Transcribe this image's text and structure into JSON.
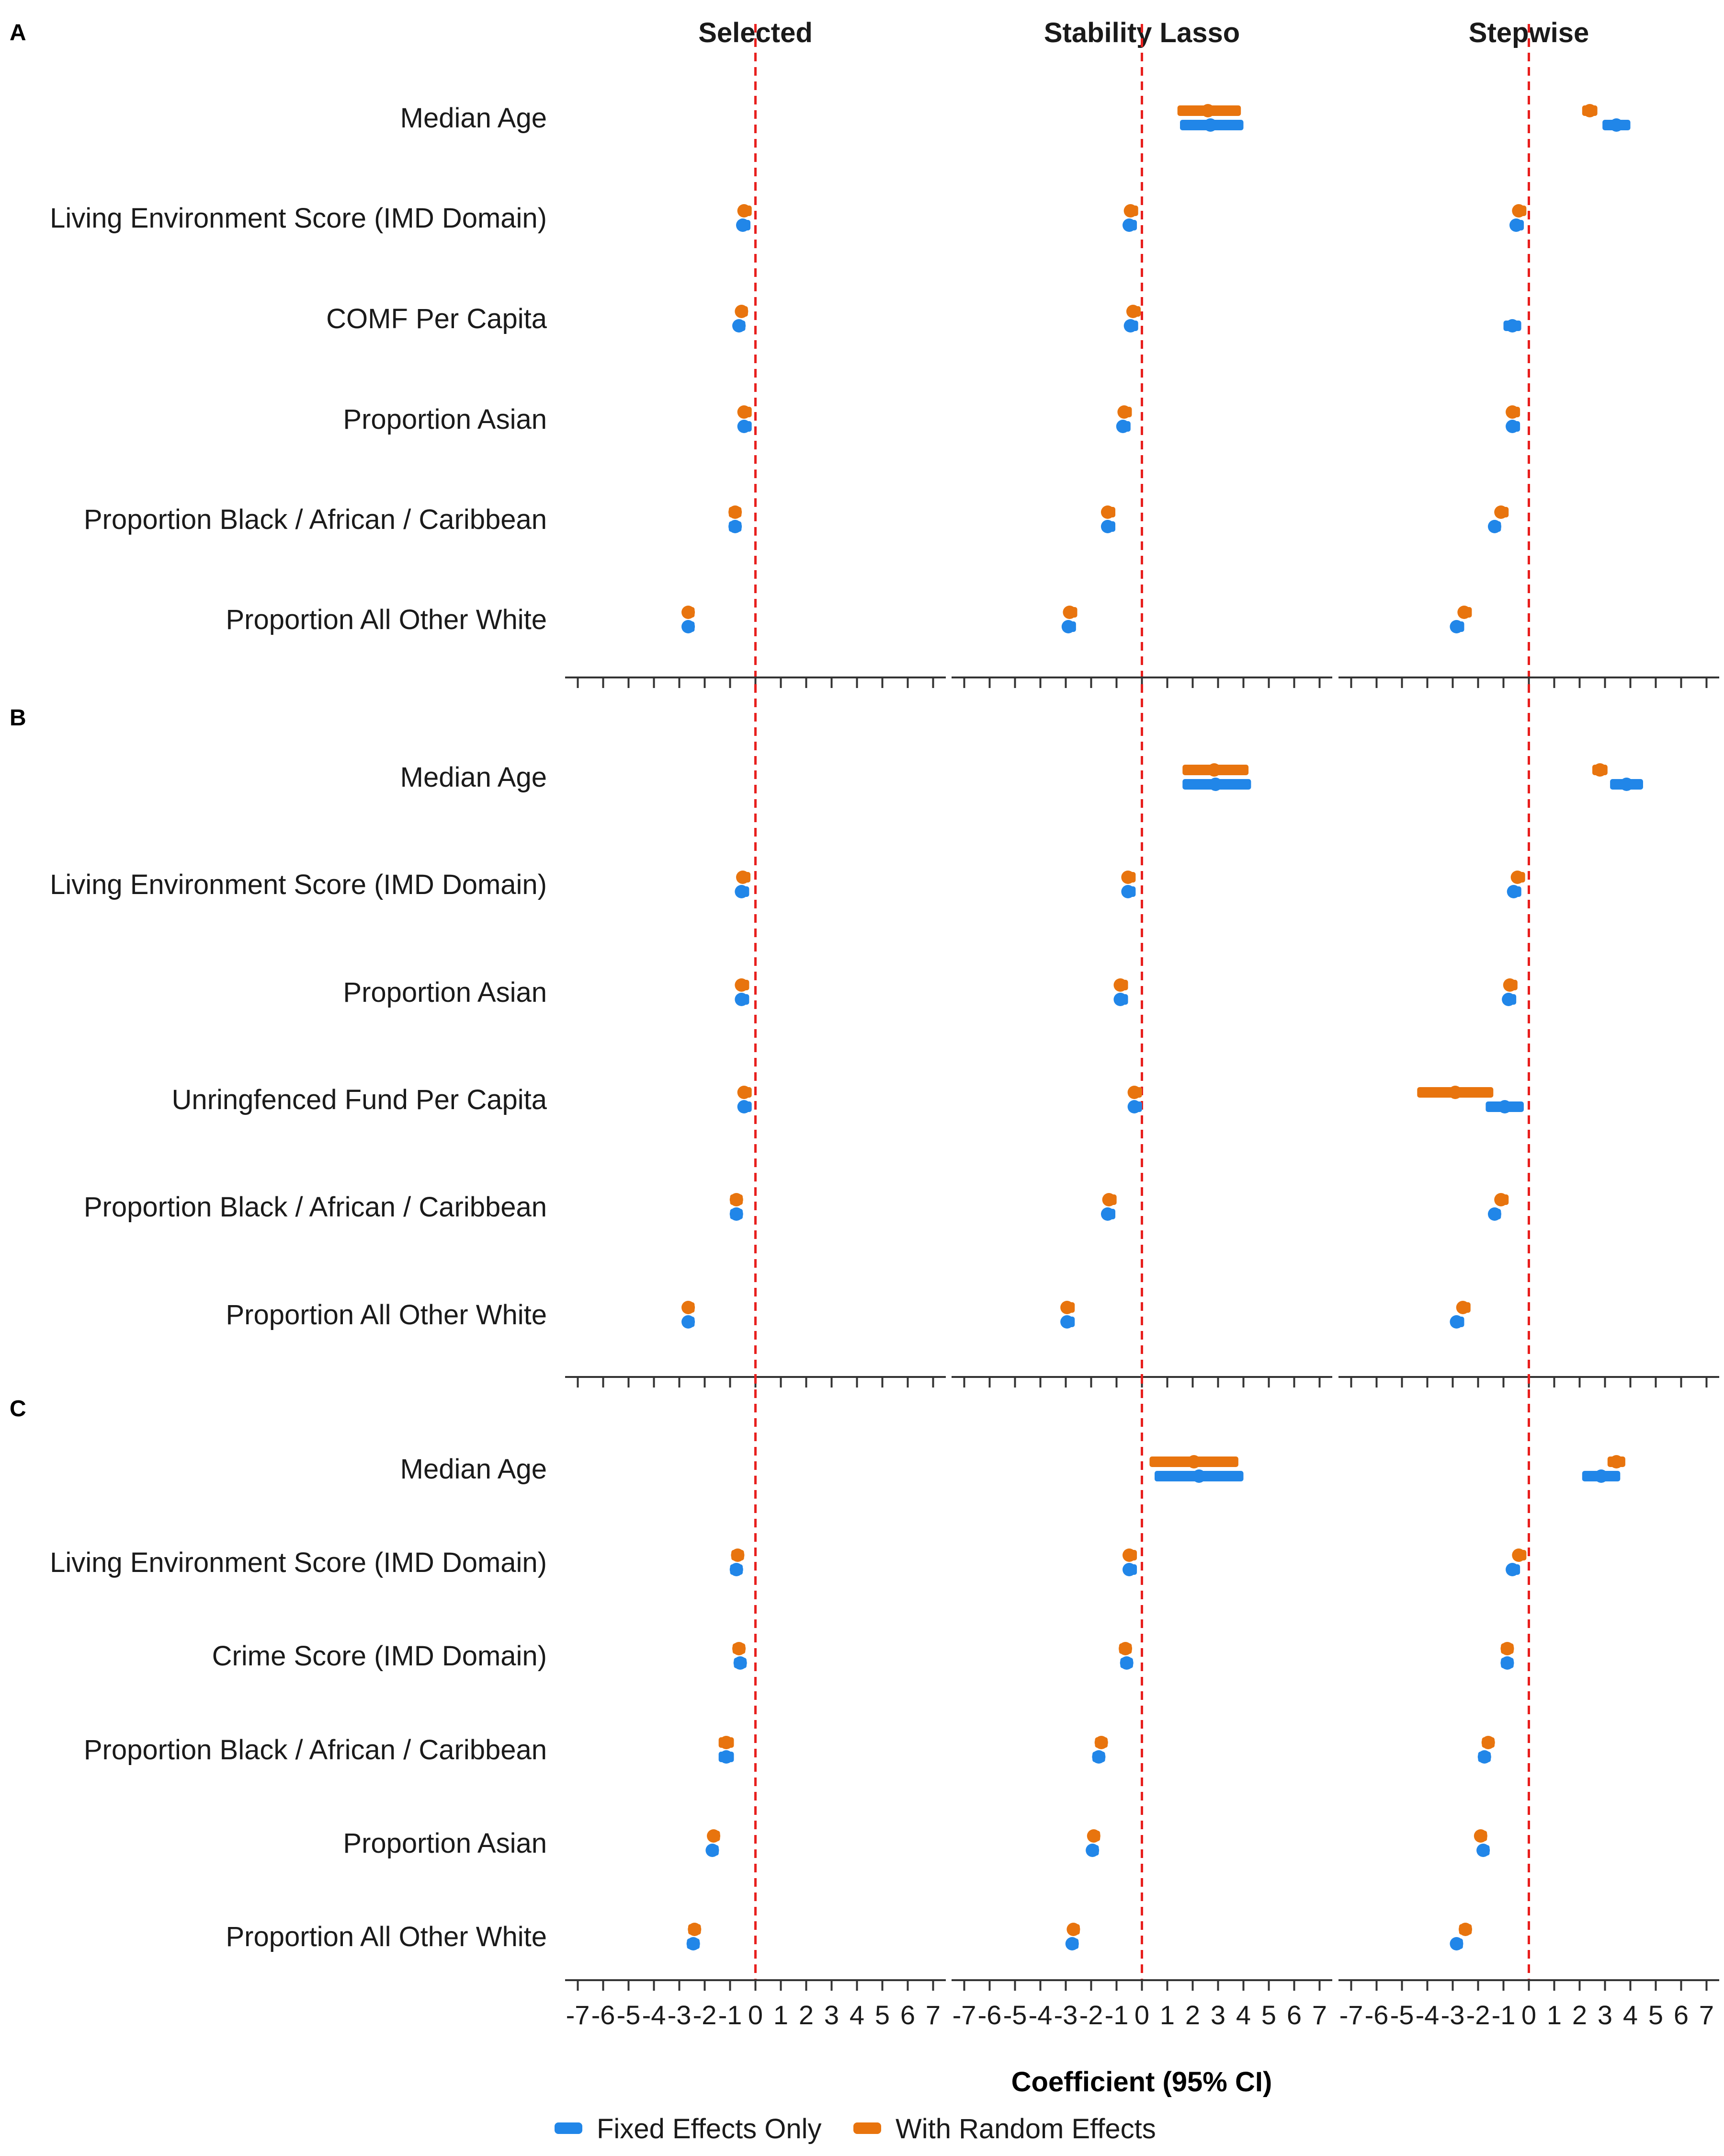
{
  "figure": {
    "axis_title": "Coefficient (95% CI)",
    "panel_titles": [
      "Selected",
      "Stability Lasso",
      "Stepwise"
    ],
    "x_ticks": [
      "-7",
      "-6",
      "-5",
      "-4",
      "-3",
      "-2",
      "-1",
      "0",
      "1",
      "2",
      "3",
      "4",
      "5",
      "6",
      "7"
    ],
    "legend": [
      {
        "label": "Fixed Effects Only",
        "color": "#2186e8"
      },
      {
        "label": "With Random Effects",
        "color": "#e8740e"
      }
    ],
    "reference_line_color": "#e8201e"
  },
  "chart_data": {
    "type": "forest",
    "xlim": [
      -7.5,
      7.5
    ],
    "reference_line": 0,
    "series_names": [
      "Fixed Effects Only",
      "With Random Effects"
    ],
    "panels": [
      {
        "letter": "A",
        "variables": [
          "Median Age",
          "Living Environment Score (IMD Domain)",
          "COMF Per Capita",
          "Proportion Asian",
          "Proportion Black / African / Caribbean",
          "Proportion All Other White"
        ],
        "models": [
          {
            "name": "Selected",
            "estimates": [
              null,
              {
                "fixed": [
                  -0.5,
                  -0.65,
                  -0.35
                ],
                "random": [
                  -0.45,
                  -0.6,
                  -0.3
                ]
              },
              {
                "fixed": [
                  -0.65,
                  -0.85,
                  -0.45
                ],
                "random": [
                  -0.55,
                  -0.75,
                  -0.35
                ]
              },
              {
                "fixed": [
                  -0.45,
                  -0.6,
                  -0.3
                ],
                "random": [
                  -0.45,
                  -0.6,
                  -0.3
                ]
              },
              {
                "fixed": [
                  -0.8,
                  -1.05,
                  -0.55
                ],
                "random": [
                  -0.8,
                  -1.05,
                  -0.55
                ]
              },
              {
                "fixed": [
                  -2.65,
                  -2.85,
                  -2.45
                ],
                "random": [
                  -2.65,
                  -2.85,
                  -2.45
                ]
              }
            ]
          },
          {
            "name": "Stability Lasso",
            "estimates": [
              {
                "fixed": [
                  2.7,
                  1.5,
                  4.0
                ],
                "random": [
                  2.6,
                  1.4,
                  3.9
                ]
              },
              {
                "fixed": [
                  -0.5,
                  -0.65,
                  -0.35
                ],
                "random": [
                  -0.45,
                  -0.6,
                  -0.3
                ]
              },
              {
                "fixed": [
                  -0.45,
                  -0.6,
                  -0.3
                ],
                "random": [
                  -0.35,
                  -0.5,
                  -0.2
                ]
              },
              {
                "fixed": [
                  -0.75,
                  -0.9,
                  -0.6
                ],
                "random": [
                  -0.7,
                  -0.85,
                  -0.55
                ]
              },
              {
                "fixed": [
                  -1.35,
                  -1.5,
                  -1.2
                ],
                "random": [
                  -1.35,
                  -1.5,
                  -1.2
                ]
              },
              {
                "fixed": [
                  -2.9,
                  -3.05,
                  -2.75
                ],
                "random": [
                  -2.85,
                  -3.0,
                  -2.7
                ]
              }
            ]
          },
          {
            "name": "Stepwise",
            "estimates": [
              {
                "fixed": [
                  3.45,
                  2.9,
                  4.0
                ],
                "random": [
                  2.4,
                  2.1,
                  2.7
                ]
              },
              {
                "fixed": [
                  -0.5,
                  -0.65,
                  -0.35
                ],
                "random": [
                  -0.4,
                  -0.55,
                  -0.25
                ]
              },
              {
                "fixed": [
                  -0.65,
                  -1.0,
                  -0.3
                ],
                "random": null
              },
              {
                "fixed": [
                  -0.65,
                  -0.8,
                  -0.5
                ],
                "random": [
                  -0.65,
                  -0.8,
                  -0.5
                ]
              },
              {
                "fixed": [
                  -1.35,
                  -1.55,
                  -1.15
                ],
                "random": [
                  -1.1,
                  -1.25,
                  -0.95
                ]
              },
              {
                "fixed": [
                  -2.85,
                  -3.0,
                  -2.7
                ],
                "random": [
                  -2.55,
                  -2.7,
                  -2.4
                ]
              }
            ]
          }
        ]
      },
      {
        "letter": "B",
        "variables": [
          "Median Age",
          "Living Environment Score (IMD Domain)",
          "Proportion Asian",
          "Unringfenced Fund Per Capita",
          "Proportion Black / African / Caribbean",
          "Proportion All Other White"
        ],
        "models": [
          {
            "name": "Selected",
            "estimates": [
              null,
              {
                "fixed": [
                  -0.55,
                  -0.7,
                  -0.4
                ],
                "random": [
                  -0.5,
                  -0.65,
                  -0.35
                ]
              },
              {
                "fixed": [
                  -0.55,
                  -0.7,
                  -0.4
                ],
                "random": [
                  -0.55,
                  -0.7,
                  -0.4
                ]
              },
              {
                "fixed": [
                  -0.45,
                  -0.6,
                  -0.3
                ],
                "random": [
                  -0.45,
                  -0.6,
                  -0.3
                ]
              },
              {
                "fixed": [
                  -0.75,
                  -1.0,
                  -0.5
                ],
                "random": [
                  -0.75,
                  -1.0,
                  -0.5
                ]
              },
              {
                "fixed": [
                  -2.65,
                  -2.85,
                  -2.45
                ],
                "random": [
                  -2.65,
                  -2.85,
                  -2.45
                ]
              }
            ]
          },
          {
            "name": "Stability Lasso",
            "estimates": [
              {
                "fixed": [
                  2.9,
                  1.6,
                  4.3
                ],
                "random": [
                  2.85,
                  1.6,
                  4.2
                ]
              },
              {
                "fixed": [
                  -0.55,
                  -0.7,
                  -0.4
                ],
                "random": [
                  -0.55,
                  -0.7,
                  -0.4
                ]
              },
              {
                "fixed": [
                  -0.85,
                  -1.0,
                  -0.7
                ],
                "random": [
                  -0.85,
                  -1.0,
                  -0.7
                ]
              },
              {
                "fixed": [
                  -0.3,
                  -0.45,
                  -0.15
                ],
                "random": [
                  -0.3,
                  -0.45,
                  -0.15
                ]
              },
              {
                "fixed": [
                  -1.35,
                  -1.5,
                  -1.2
                ],
                "random": [
                  -1.3,
                  -1.45,
                  -1.15
                ]
              },
              {
                "fixed": [
                  -2.95,
                  -3.1,
                  -2.8
                ],
                "random": [
                  -2.95,
                  -3.1,
                  -2.8
                ]
              }
            ]
          },
          {
            "name": "Stepwise",
            "estimates": [
              {
                "fixed": [
                  3.85,
                  3.2,
                  4.5
                ],
                "random": [
                  2.8,
                  2.5,
                  3.1
                ]
              },
              {
                "fixed": [
                  -0.6,
                  -0.75,
                  -0.45
                ],
                "random": [
                  -0.45,
                  -0.6,
                  -0.3
                ]
              },
              {
                "fixed": [
                  -0.8,
                  -0.95,
                  -0.65
                ],
                "random": [
                  -0.75,
                  -0.9,
                  -0.6
                ]
              },
              {
                "fixed": [
                  -0.95,
                  -1.7,
                  -0.2
                ],
                "random": [
                  -2.9,
                  -4.4,
                  -1.4
                ]
              },
              {
                "fixed": [
                  -1.35,
                  -1.55,
                  -1.15
                ],
                "random": [
                  -1.1,
                  -1.25,
                  -0.95
                ]
              },
              {
                "fixed": [
                  -2.85,
                  -3.0,
                  -2.7
                ],
                "random": [
                  -2.6,
                  -2.75,
                  -2.45
                ]
              }
            ]
          }
        ]
      },
      {
        "letter": "C",
        "variables": [
          "Median Age",
          "Living Environment Score (IMD Domain)",
          "Crime Score (IMD Domain)",
          "Proportion Black / African / Caribbean",
          "Proportion Asian",
          "Proportion All Other White"
        ],
        "models": [
          {
            "name": "Selected",
            "estimates": [
              null,
              {
                "fixed": [
                  -0.75,
                  -1.0,
                  -0.5
                ],
                "random": [
                  -0.7,
                  -0.95,
                  -0.45
                ]
              },
              {
                "fixed": [
                  -0.6,
                  -0.85,
                  -0.35
                ],
                "random": [
                  -0.65,
                  -0.9,
                  -0.4
                ]
              },
              {
                "fixed": [
                  -1.15,
                  -1.45,
                  -0.85
                ],
                "random": [
                  -1.15,
                  -1.45,
                  -0.85
                ]
              },
              {
                "fixed": [
                  -1.7,
                  -1.9,
                  -1.5
                ],
                "random": [
                  -1.65,
                  -1.85,
                  -1.45
                ]
              },
              {
                "fixed": [
                  -2.45,
                  -2.7,
                  -2.2
                ],
                "random": [
                  -2.4,
                  -2.65,
                  -2.15
                ]
              }
            ]
          },
          {
            "name": "Stability Lasso",
            "estimates": [
              {
                "fixed": [
                  2.25,
                  0.5,
                  4.0
                ],
                "random": [
                  2.05,
                  0.3,
                  3.8
                ]
              },
              {
                "fixed": [
                  -0.5,
                  -0.65,
                  -0.35
                ],
                "random": [
                  -0.5,
                  -0.65,
                  -0.35
                ]
              },
              {
                "fixed": [
                  -0.6,
                  -0.85,
                  -0.35
                ],
                "random": [
                  -0.65,
                  -0.9,
                  -0.4
                ]
              },
              {
                "fixed": [
                  -1.7,
                  -1.95,
                  -1.45
                ],
                "random": [
                  -1.6,
                  -1.85,
                  -1.35
                ]
              },
              {
                "fixed": [
                  -1.95,
                  -2.15,
                  -1.75
                ],
                "random": [
                  -1.9,
                  -2.1,
                  -1.7
                ]
              },
              {
                "fixed": [
                  -2.75,
                  -2.95,
                  -2.55
                ],
                "random": [
                  -2.7,
                  -2.9,
                  -2.5
                ]
              }
            ]
          },
          {
            "name": "Stepwise",
            "estimates": [
              {
                "fixed": [
                  2.85,
                  2.1,
                  3.6
                ],
                "random": [
                  3.45,
                  3.1,
                  3.8
                ]
              },
              {
                "fixed": [
                  -0.65,
                  -0.8,
                  -0.5
                ],
                "random": [
                  -0.4,
                  -0.55,
                  -0.25
                ]
              },
              {
                "fixed": [
                  -0.85,
                  -1.1,
                  -0.6
                ],
                "random": [
                  -0.85,
                  -1.1,
                  -0.6
                ]
              },
              {
                "fixed": [
                  -1.75,
                  -2.0,
                  -1.5
                ],
                "random": [
                  -1.6,
                  -1.85,
                  -1.35
                ]
              },
              {
                "fixed": [
                  -1.8,
                  -2.0,
                  -1.6
                ],
                "random": [
                  -1.9,
                  -2.1,
                  -1.7
                ]
              },
              {
                "fixed": [
                  -2.85,
                  -3.05,
                  -2.65
                ],
                "random": [
                  -2.5,
                  -2.75,
                  -2.25
                ]
              }
            ]
          }
        ]
      }
    ]
  }
}
